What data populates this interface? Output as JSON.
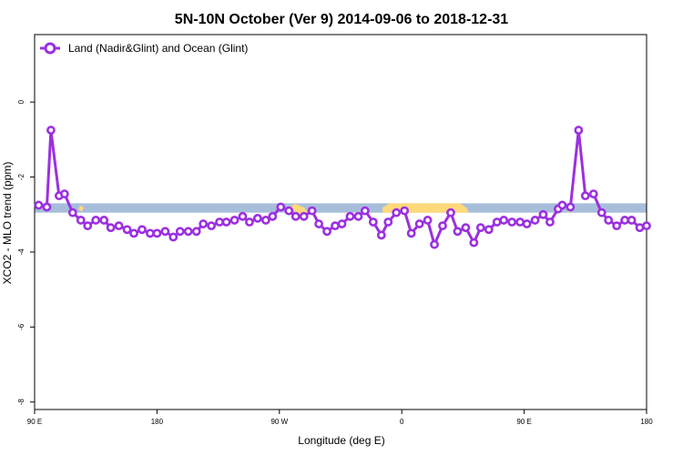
{
  "chart_data": {
    "type": "line",
    "title": "5N-10N October (Ver 9)   2014-09-06 to 2018-12-31",
    "xlabel": "Longitude (deg E)",
    "ylabel": "XCO2 - MLO trend (ppm)",
    "xlim": [
      90,
      540
    ],
    "ylim": [
      -8.2,
      1.8
    ],
    "x_ticks": [
      {
        "value": 90,
        "label": "90 E"
      },
      {
        "value": 180,
        "label": "180"
      },
      {
        "value": 270,
        "label": "90 W"
      },
      {
        "value": 360,
        "label": "0"
      },
      {
        "value": 450,
        "label": "90 E"
      },
      {
        "value": 540,
        "label": "180"
      }
    ],
    "y_ticks": [
      {
        "value": 0,
        "label": "0"
      },
      {
        "value": -2,
        "label": "-2"
      },
      {
        "value": -4,
        "label": "-4"
      },
      {
        "value": -6,
        "label": "-6"
      },
      {
        "value": -8,
        "label": "-8"
      }
    ],
    "legend_position": "top-left",
    "grid": false,
    "series": [
      {
        "name": "Land (Nadir&Glint) and Ocean (Glint)",
        "color": "#9b30e0",
        "x": [
          93,
          99,
          102,
          108,
          112,
          118,
          124,
          129,
          135,
          141,
          146,
          152,
          158,
          163,
          169,
          175,
          180,
          186,
          192,
          197,
          203,
          209,
          214,
          220,
          226,
          231,
          237,
          243,
          248,
          254,
          260,
          265,
          271,
          277,
          282,
          288,
          294,
          299,
          305,
          311,
          316,
          322,
          328,
          333,
          339,
          345,
          350,
          356,
          362,
          367,
          373,
          379,
          384,
          390,
          396,
          401,
          407,
          413,
          418,
          424,
          430,
          435,
          441,
          447,
          452,
          458,
          464,
          469,
          475,
          478,
          484,
          490,
          495,
          501,
          507,
          512,
          518,
          524,
          529,
          535,
          540
        ],
        "y": [
          -2.75,
          -2.8,
          -0.75,
          -2.5,
          -2.45,
          -2.95,
          -3.15,
          -3.3,
          -3.15,
          -3.15,
          -3.35,
          -3.3,
          -3.4,
          -3.5,
          -3.4,
          -3.5,
          -3.5,
          -3.45,
          -3.6,
          -3.45,
          -3.45,
          -3.45,
          -3.25,
          -3.3,
          -3.2,
          -3.2,
          -3.15,
          -3.05,
          -3.2,
          -3.1,
          -3.15,
          -3.05,
          -2.8,
          -2.9,
          -3.05,
          -3.05,
          -2.9,
          -3.25,
          -3.45,
          -3.3,
          -3.25,
          -3.05,
          -3.05,
          -2.9,
          -3.2,
          -3.55,
          -3.2,
          -2.95,
          -2.9,
          -3.5,
          -3.25,
          -3.15,
          -3.8,
          -3.3,
          -2.95,
          -3.45,
          -3.35,
          -3.75,
          -3.35,
          -3.4,
          -3.2,
          -3.15,
          -3.2,
          -3.2,
          -3.25,
          -3.15,
          -3.0,
          -3.2,
          -2.85,
          -2.75,
          -2.8,
          -0.75,
          -2.5,
          -2.45,
          -2.95,
          -3.15,
          -3.3,
          -3.15,
          -3.15,
          -3.35,
          -3.3
        ]
      }
    ]
  },
  "background_band": {
    "y_range": [
      -2.7,
      -2.95
    ],
    "ocean_color": "#a7bedb",
    "land_color": "#ffd97a"
  }
}
